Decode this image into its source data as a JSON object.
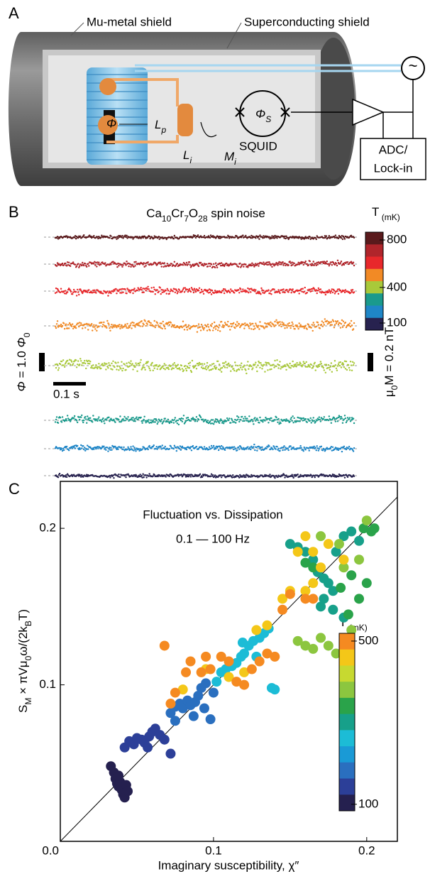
{
  "panel_a": {
    "label": "A",
    "mu_metal": "Mu-metal shield",
    "sc_shield": "Superconducting shield",
    "phi": "Φ",
    "lp": [
      "L",
      "p"
    ],
    "li": [
      "L",
      "i"
    ],
    "mi": [
      "M",
      "i"
    ],
    "phis": [
      "Φ",
      "S"
    ],
    "squid": "SQUID",
    "adc": "ADC/",
    "lockin": "Lock-in",
    "source": "~"
  },
  "panel_b": {
    "label": "B",
    "title": [
      "Ca",
      "10",
      "Cr",
      "7",
      "O",
      "28",
      " spin noise"
    ],
    "colorbar_label": [
      "T",
      " (mK)"
    ],
    "colors": [
      "#5a1a1c",
      "#b0252b",
      "#e8282b",
      "#f28a25",
      "#a9c93a",
      "#1a9a8c",
      "#1f86c7",
      "#27224f"
    ],
    "clim": [
      40,
      866
    ],
    "cticks": [
      100,
      400,
      800
    ],
    "flux_scale": [
      "Φ",
      " = 1.0 ",
      "Φ",
      "0"
    ],
    "time_scale": "0.1 s",
    "field_scale": [
      "μ",
      "0",
      "M = 0.2 nT"
    ],
    "traces": [
      {
        "color": "#5a1a1c",
        "amplitude": 0.15
      },
      {
        "color": "#b0252b",
        "amplitude": 0.25
      },
      {
        "color": "#e8282b",
        "amplitude": 0.3
      },
      {
        "color": "#f28a25",
        "amplitude": 0.4
      },
      {
        "color": "#a9c93a",
        "amplitude": 0.5
      },
      {
        "color": "#1a9a8c",
        "amplitude": 0.35
      },
      {
        "color": "#1f86c7",
        "amplitude": 0.25
      },
      {
        "color": "#27224f",
        "amplitude": 0.15
      }
    ]
  },
  "panel_c": {
    "label": "C",
    "chart_data": {
      "type": "scatter",
      "title": "Fluctuation vs. Dissipation",
      "subtitle": "0.1 — 100 Hz",
      "x_label": "Imaginary susceptibility, χ″",
      "y_label": [
        "S",
        "M",
        " × πVμ",
        "0",
        "ω/(2k",
        "B",
        "T)"
      ],
      "xlim": [
        0,
        0.22
      ],
      "ylim": [
        0,
        0.23
      ],
      "xticks": [
        {
          "value": 0,
          "label": "0.0"
        },
        0.1,
        0.2
      ],
      "yticks": [
        0.1,
        0.2
      ],
      "colorbar_label": [
        "T",
        " (mK)"
      ],
      "clim": [
        84,
        519
      ],
      "cticks": [
        100,
        500
      ],
      "colors": [
        "#f58a21",
        "#f4c718",
        "#c7d930",
        "#8cc63f",
        "#2aa34a",
        "#17a08a",
        "#1cbcd6",
        "#1a9ad6",
        "#2a6fbf",
        "#2c3f98",
        "#25204f"
      ],
      "series": [
        {
          "color": "#25204f",
          "x": [
            0.033,
            0.035,
            0.036,
            0.037,
            0.038,
            0.039,
            0.04,
            0.041,
            0.042,
            0.043,
            0.044,
            0.038
          ],
          "values": [
            0.048,
            0.044,
            0.04,
            0.037,
            0.035,
            0.038,
            0.033,
            0.03,
            0.028,
            0.036,
            0.032,
            0.042
          ]
        },
        {
          "color": "#2c3f98",
          "x": [
            0.042,
            0.045,
            0.048,
            0.05,
            0.053,
            0.055,
            0.058,
            0.06,
            0.062,
            0.065,
            0.072,
            0.068,
            0.057
          ],
          "values": [
            0.06,
            0.064,
            0.062,
            0.066,
            0.065,
            0.063,
            0.067,
            0.07,
            0.072,
            0.068,
            0.056,
            0.065,
            0.06
          ]
        },
        {
          "color": "#2a6fbf",
          "x": [
            0.072,
            0.075,
            0.078,
            0.08,
            0.083,
            0.085,
            0.088,
            0.09,
            0.092,
            0.095,
            0.087,
            0.094,
            0.098,
            0.1,
            0.075
          ],
          "values": [
            0.082,
            0.086,
            0.088,
            0.085,
            0.09,
            0.087,
            0.089,
            0.093,
            0.098,
            0.101,
            0.08,
            0.085,
            0.078,
            0.095,
            0.077
          ]
        },
        {
          "color": "#1cbcd6",
          "x": [
            0.102,
            0.105,
            0.108,
            0.112,
            0.115,
            0.118,
            0.12,
            0.123,
            0.126,
            0.13,
            0.133,
            0.136,
            0.14,
            0.138,
            0.128,
            0.119
          ],
          "values": [
            0.102,
            0.108,
            0.11,
            0.112,
            0.114,
            0.118,
            0.12,
            0.125,
            0.128,
            0.13,
            0.133,
            0.136,
            0.097,
            0.098,
            0.118,
            0.127
          ]
        },
        {
          "color": "#17a08a",
          "x": [
            0.15,
            0.155,
            0.16,
            0.165,
            0.168,
            0.172,
            0.175,
            0.172,
            0.17,
            0.178,
            0.18,
            0.185,
            0.19,
            0.195,
            0.185,
            0.178
          ],
          "values": [
            0.19,
            0.188,
            0.185,
            0.18,
            0.172,
            0.168,
            0.165,
            0.155,
            0.15,
            0.148,
            0.185,
            0.195,
            0.198,
            0.192,
            0.143,
            0.16
          ]
        },
        {
          "color": "#2aa34a",
          "x": [
            0.16,
            0.165,
            0.188,
            0.195,
            0.2,
            0.19,
            0.198,
            0.203,
            0.205,
            0.183
          ],
          "values": [
            0.178,
            0.175,
            0.145,
            0.155,
            0.165,
            0.17,
            0.2,
            0.198,
            0.2,
            0.162
          ]
        },
        {
          "color": "#8cc63f",
          "x": [
            0.155,
            0.16,
            0.165,
            0.17,
            0.175,
            0.18,
            0.19,
            0.195,
            0.2,
            0.185,
            0.17,
            0.182
          ],
          "values": [
            0.128,
            0.125,
            0.123,
            0.13,
            0.125,
            0.12,
            0.135,
            0.18,
            0.205,
            0.175,
            0.195,
            0.19
          ]
        },
        {
          "color": "#f4c718",
          "x": [
            0.155,
            0.16,
            0.165,
            0.175,
            0.165,
            0.16,
            0.15,
            0.145,
            0.135,
            0.128,
            0.12,
            0.11,
            0.095,
            0.08,
            0.185,
            0.17
          ],
          "values": [
            0.185,
            0.195,
            0.185,
            0.19,
            0.165,
            0.16,
            0.16,
            0.155,
            0.138,
            0.135,
            0.108,
            0.105,
            0.11,
            0.097,
            0.18,
            0.175
          ]
        },
        {
          "color": "#f58a21",
          "x": [
            0.068,
            0.072,
            0.085,
            0.092,
            0.095,
            0.098,
            0.105,
            0.11,
            0.115,
            0.12,
            0.125,
            0.13,
            0.135,
            0.14,
            0.145,
            0.15,
            0.16,
            0.165,
            0.082,
            0.075
          ],
          "values": [
            0.125,
            0.088,
            0.115,
            0.108,
            0.118,
            0.11,
            0.118,
            0.115,
            0.102,
            0.1,
            0.11,
            0.115,
            0.12,
            0.118,
            0.148,
            0.158,
            0.155,
            0.155,
            0.108,
            0.095
          ]
        }
      ]
    }
  }
}
